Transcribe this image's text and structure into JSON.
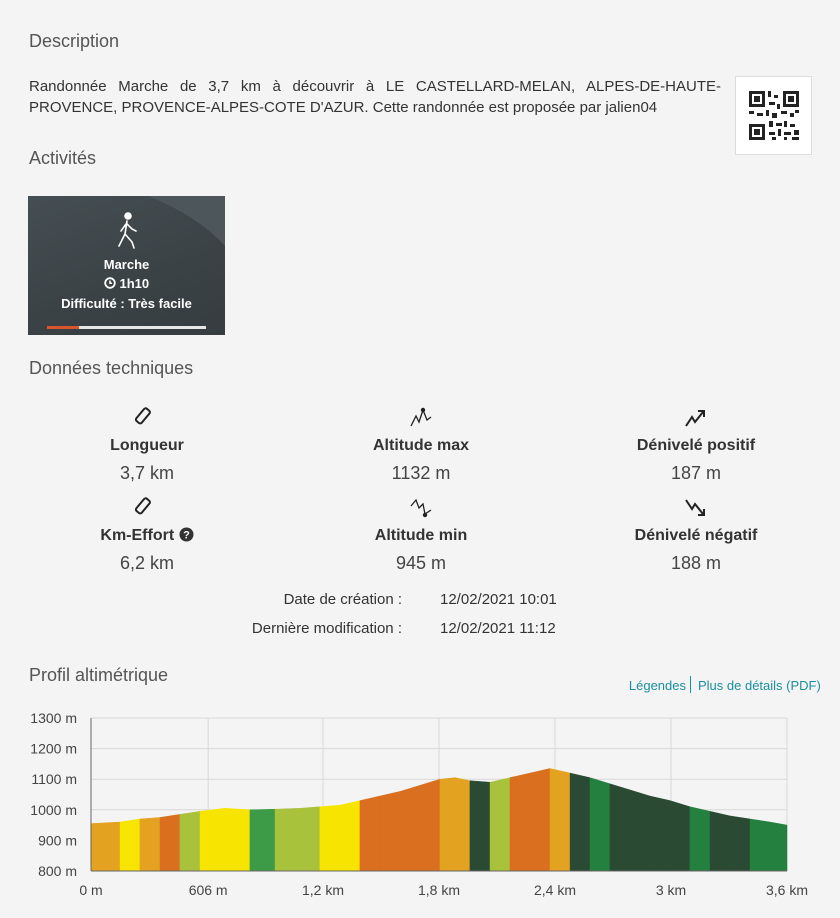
{
  "description": {
    "title": "Description",
    "text": "Randonnée Marche de 3,7 km à découvrir à LE CASTELLARD-MELAN, ALPES-DE-HAUTE-PROVENCE, PROVENCE-ALPES-COTE D'AZUR. Cette randonnée est proposée par jalien04"
  },
  "activities": {
    "title": "Activités",
    "name": "Marche",
    "duration": "1h10",
    "difficulty": "Difficulté : Très facile"
  },
  "technical": {
    "title": "Données techniques",
    "items": [
      {
        "label": "Longueur",
        "value": "3,7 km"
      },
      {
        "label": "Altitude max",
        "value": "1132 m"
      },
      {
        "label": "Dénivelé positif",
        "value": "187 m"
      },
      {
        "label": "Km-Effort",
        "value": "6,2 km"
      },
      {
        "label": "Altitude min",
        "value": "945 m"
      },
      {
        "label": "Dénivelé négatif",
        "value": "188 m"
      }
    ],
    "dates": [
      {
        "label": "Date de création :",
        "value": "12/02/2021 10:01"
      },
      {
        "label": "Dernière modification :",
        "value": "12/02/2021 11:12"
      }
    ]
  },
  "profile": {
    "title": "Profil altimétrique",
    "links": [
      "Légendes",
      "Plus de détails (PDF)"
    ]
  },
  "chart_data": {
    "type": "area",
    "x": [
      0,
      150,
      253,
      357,
      460,
      564,
      693,
      822,
      952,
      1081,
      1184,
      1288,
      1391,
      1495,
      1598,
      1702,
      1805,
      1883,
      1960,
      2064,
      2167,
      2271,
      2374,
      2478,
      2581,
      2684,
      2788,
      2891,
      2995,
      3098,
      3202,
      3305,
      3409,
      3512,
      3600
    ],
    "values": [
      955,
      960,
      970,
      975,
      985,
      995,
      1005,
      1000,
      1002,
      1005,
      1010,
      1015,
      1030,
      1045,
      1060,
      1080,
      1100,
      1105,
      1095,
      1090,
      1105,
      1120,
      1135,
      1120,
      1105,
      1085,
      1065,
      1045,
      1030,
      1010,
      995,
      980,
      970,
      960,
      950
    ],
    "segment_colors": [
      "#e3a21f",
      "#f7e400",
      "#e3a21f",
      "#d96f1f",
      "#a9c23b",
      "#f7e400",
      "#f7e400",
      "#3d9b48",
      "#a9c23b",
      "#a9c23b",
      "#f7e400",
      "#f7e400",
      "#d96f1f",
      "#d96f1f",
      "#d96f1f",
      "#d96f1f",
      "#e3a21f",
      "#e3a21f",
      "#2b4a33",
      "#a9c23b",
      "#d96f1f",
      "#d96f1f",
      "#e3a21f",
      "#2b4a33",
      "#24803f",
      "#2b4a33",
      "#2b4a33",
      "#2b4a33",
      "#2b4a33",
      "#24803f",
      "#2b4a33",
      "#2b4a33",
      "#24803f",
      "#24803f"
    ],
    "xlim": [
      0,
      3600
    ],
    "xticks": [
      {
        "value": 0,
        "label": "0 m"
      },
      {
        "value": 606,
        "label": "606 m"
      },
      {
        "value": 1200,
        "label": "1,2 km"
      },
      {
        "value": 1800,
        "label": "1,8 km"
      },
      {
        "value": 2400,
        "label": "2,4 km"
      },
      {
        "value": 3000,
        "label": "3 km"
      },
      {
        "value": 3600,
        "label": "3,6 km"
      }
    ],
    "ylim": [
      800,
      1300
    ],
    "yticks": [
      {
        "value": 800,
        "label": "800 m"
      },
      {
        "value": 900,
        "label": "900 m"
      },
      {
        "value": 1000,
        "label": "1000 m"
      },
      {
        "value": 1100,
        "label": "1100 m"
      },
      {
        "value": 1200,
        "label": "1200 m"
      },
      {
        "value": 1300,
        "label": "1300 m"
      }
    ],
    "grid": true
  }
}
